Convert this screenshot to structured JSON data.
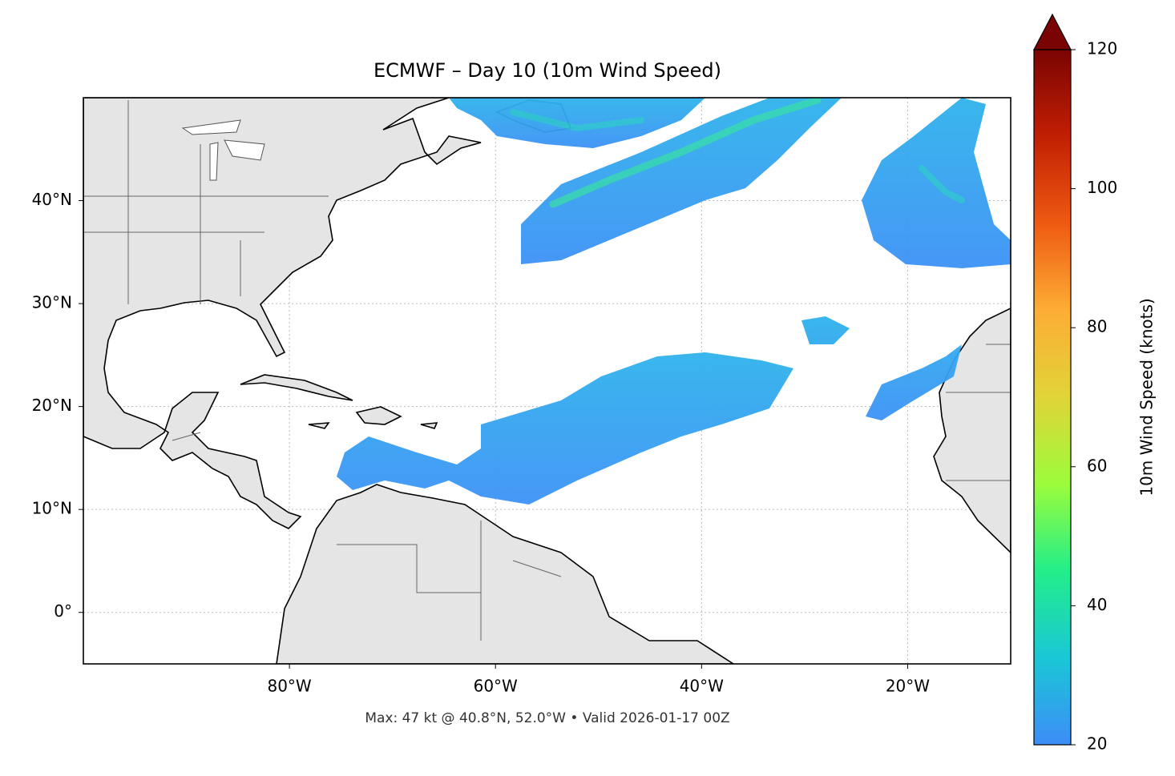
{
  "chart_data": {
    "type": "map",
    "title": "ECMWF – Day 10 (10m Wind Speed)",
    "xlim": [
      -100,
      -10
    ],
    "ylim": [
      -5,
      50
    ],
    "xticks": [
      {
        "value": -80,
        "label": "80°W"
      },
      {
        "value": -60,
        "label": "60°W"
      },
      {
        "value": -40,
        "label": "40°W"
      },
      {
        "value": -20,
        "label": "20°W"
      }
    ],
    "yticks": [
      {
        "value": 0,
        "label": "0°"
      },
      {
        "value": 10,
        "label": "10°N"
      },
      {
        "value": 20,
        "label": "20°N"
      },
      {
        "value": 30,
        "label": "30°N"
      },
      {
        "value": 40,
        "label": "40°N"
      }
    ],
    "grid": true,
    "land_color": "#e5e5e5",
    "footnote": "Max: 47 kt @ 40.8°N, 52.0°W • Valid 2026-01-17 00Z",
    "colorbar": {
      "label": "10m Wind Speed (knots)",
      "lim": [
        20,
        120
      ],
      "ticks": [
        20,
        40,
        60,
        80,
        100,
        120
      ],
      "colors": [
        "#3d8df7",
        "#1ac7d6",
        "#22ee8a",
        "#9cfc3b",
        "#e0d438",
        "#fdad35",
        "#ee5a12",
        "#c21f03",
        "#7a0403"
      ],
      "extend": "max"
    }
  }
}
